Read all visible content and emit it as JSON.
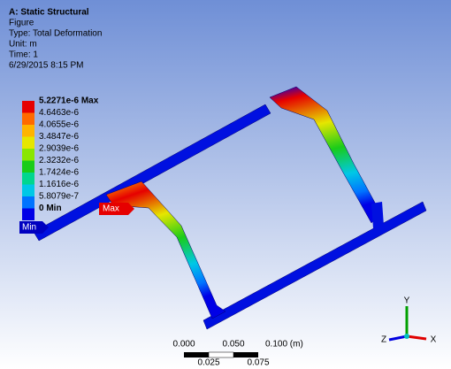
{
  "header": {
    "title": "A: Static Structural",
    "lines": [
      "Figure",
      "Type: Total Deformation",
      "Unit: m",
      "Time: 1",
      "6/29/2015 8:15 PM"
    ]
  },
  "legend": {
    "entries": [
      {
        "label": "5.2271e-6 Max",
        "color": "#e60000"
      },
      {
        "label": "4.6463e-6",
        "color": "#ff6a00"
      },
      {
        "label": "4.0655e-6",
        "color": "#ffb400"
      },
      {
        "label": "3.4847e-6",
        "color": "#e6e600"
      },
      {
        "label": "2.9039e-6",
        "color": "#8ae600"
      },
      {
        "label": "2.3232e-6",
        "color": "#19cc19"
      },
      {
        "label": "1.7424e-6",
        "color": "#00d68f"
      },
      {
        "label": "1.1616e-6",
        "color": "#00c8e6"
      },
      {
        "label": "5.8079e-7",
        "color": "#0073ff"
      },
      {
        "label": "0 Min",
        "color": "#0000e6"
      }
    ]
  },
  "tags": {
    "max": "Max",
    "min": "Min"
  },
  "scale_bar": {
    "top": [
      "0.000",
      "0.050",
      "0.100 (m)"
    ],
    "bottom": [
      "0.025",
      "0.075"
    ]
  },
  "triad": {
    "y": "Y",
    "z": "Z",
    "x": "X"
  }
}
